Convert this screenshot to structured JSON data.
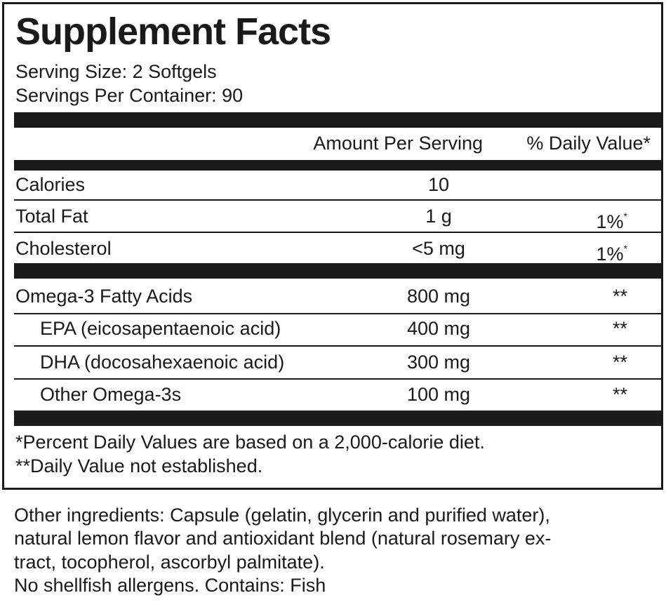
{
  "header": {
    "title": "Supplement Facts",
    "serving_size": "Serving Size: 2 Softgels",
    "servings_per_container": "Servings Per Container: 90"
  },
  "table": {
    "columns": [
      "Amount Per Serving",
      "% Daily Value*"
    ],
    "rows": [
      {
        "name": "Calories",
        "amount": "10"
      },
      {
        "name": "Total Fat",
        "amount": "1 g",
        "daily_value": "1%",
        "daily_value_mark": "*"
      },
      {
        "name": "Cholesterol",
        "amount": "<5 mg",
        "daily_value": "1%",
        "daily_value_mark": "*"
      },
      {
        "name": "Omega-3 Fatty Acids",
        "amount": "800 mg",
        "daily_value": "**"
      },
      {
        "name": "EPA (eicosapentaenoic acid)",
        "amount": "400 mg",
        "daily_value": "**"
      },
      {
        "name": "DHA (docosahexaenoic acid)",
        "amount": "300 mg",
        "daily_value": "**"
      },
      {
        "name": "Other Omega-3s",
        "amount": "100 mg",
        "daily_value": "**"
      }
    ]
  },
  "footnotes": [
    "*Percent Daily Values are based on a 2,000-calorie diet.",
    "**Daily Value not established."
  ],
  "other_ingredients": [
    "Other ingredients: Capsule (gelatin, glycerin and purified water),",
    "natural lemon flavor and antioxidant blend (natural rosemary ex-",
    "tract, tocopherol, ascorbyl palmitate).",
    "No shellfish allergens. Contains: Fish"
  ]
}
